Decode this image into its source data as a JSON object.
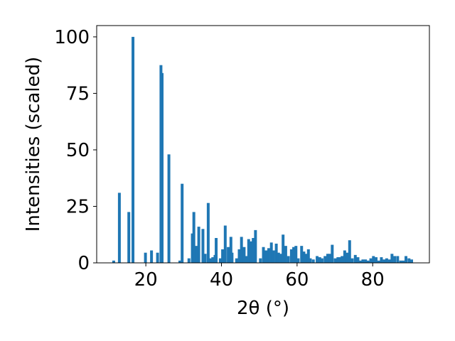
{
  "chart_data": {
    "type": "bar",
    "xlabel": "2θ (°)",
    "ylabel": "Intensities (scaled)",
    "xlim": [
      7,
      95
    ],
    "ylim": [
      0,
      105
    ],
    "xticks": [
      20,
      40,
      60,
      80
    ],
    "yticks": [
      0,
      25,
      50,
      75,
      100
    ],
    "bar_width": 0.75,
    "bar_color": "#1f77b4",
    "x": [
      11.5,
      13.0,
      15.5,
      16.6,
      19.9,
      21.5,
      23.1,
      24.0,
      24.3,
      26.1,
      29.0,
      29.6,
      31.4,
      32.3,
      32.7,
      33.4,
      34.0,
      35.1,
      35.7,
      36.5,
      37.0,
      37.7,
      38.3,
      38.6,
      39.7,
      40.3,
      41.0,
      41.8,
      42.5,
      42.8,
      44.0,
      44.7,
      45.3,
      46.0,
      46.5,
      47.2,
      47.8,
      48.4,
      49.0,
      50.3,
      51.1,
      51.8,
      52.5,
      53.2,
      53.8,
      54.5,
      55.1,
      55.8,
      56.3,
      57.0,
      57.7,
      58.5,
      59.1,
      59.7,
      60.3,
      61.2,
      61.8,
      62.4,
      63.0,
      63.5,
      64.3,
      65.3,
      66.0,
      66.6,
      67.4,
      68.1,
      68.7,
      69.3,
      70.1,
      70.8,
      71.3,
      71.9,
      72.6,
      73.2,
      73.9,
      74.6,
      75.4,
      76.1,
      76.8,
      77.4,
      78.1,
      78.8,
      79.5,
      80.2,
      80.9,
      81.6,
      82.3,
      83.0,
      83.7,
      84.4,
      85.1,
      85.8,
      86.6,
      87.4,
      88.1,
      88.8,
      89.6,
      90.3
    ],
    "values": [
      1,
      31,
      22.5,
      100,
      4.5,
      5.5,
      4.5,
      87.5,
      84,
      48,
      1,
      35,
      2,
      13,
      22.5,
      7.5,
      16,
      15,
      4,
      26.5,
      2,
      2.5,
      3.5,
      11,
      2,
      6,
      16.5,
      7,
      11.5,
      4.5,
      2,
      6,
      11.5,
      7,
      3,
      10.5,
      9.5,
      11,
      14.5,
      2,
      7,
      5.5,
      6.5,
      9,
      5.5,
      8.5,
      4.5,
      4,
      12.5,
      7.5,
      3,
      6,
      7,
      7.5,
      2,
      7.5,
      5,
      4,
      6,
      2,
      1.5,
      3,
      2.5,
      2,
      3,
      4,
      4,
      8,
      2,
      2.5,
      2.5,
      3,
      5.5,
      4.5,
      10,
      2,
      3.5,
      2.5,
      1,
      1.5,
      1.5,
      1,
      2,
      3,
      2.5,
      1,
      2.5,
      1.5,
      2,
      1.5,
      4,
      3,
      3,
      1,
      1,
      3,
      2,
      1.5
    ]
  }
}
